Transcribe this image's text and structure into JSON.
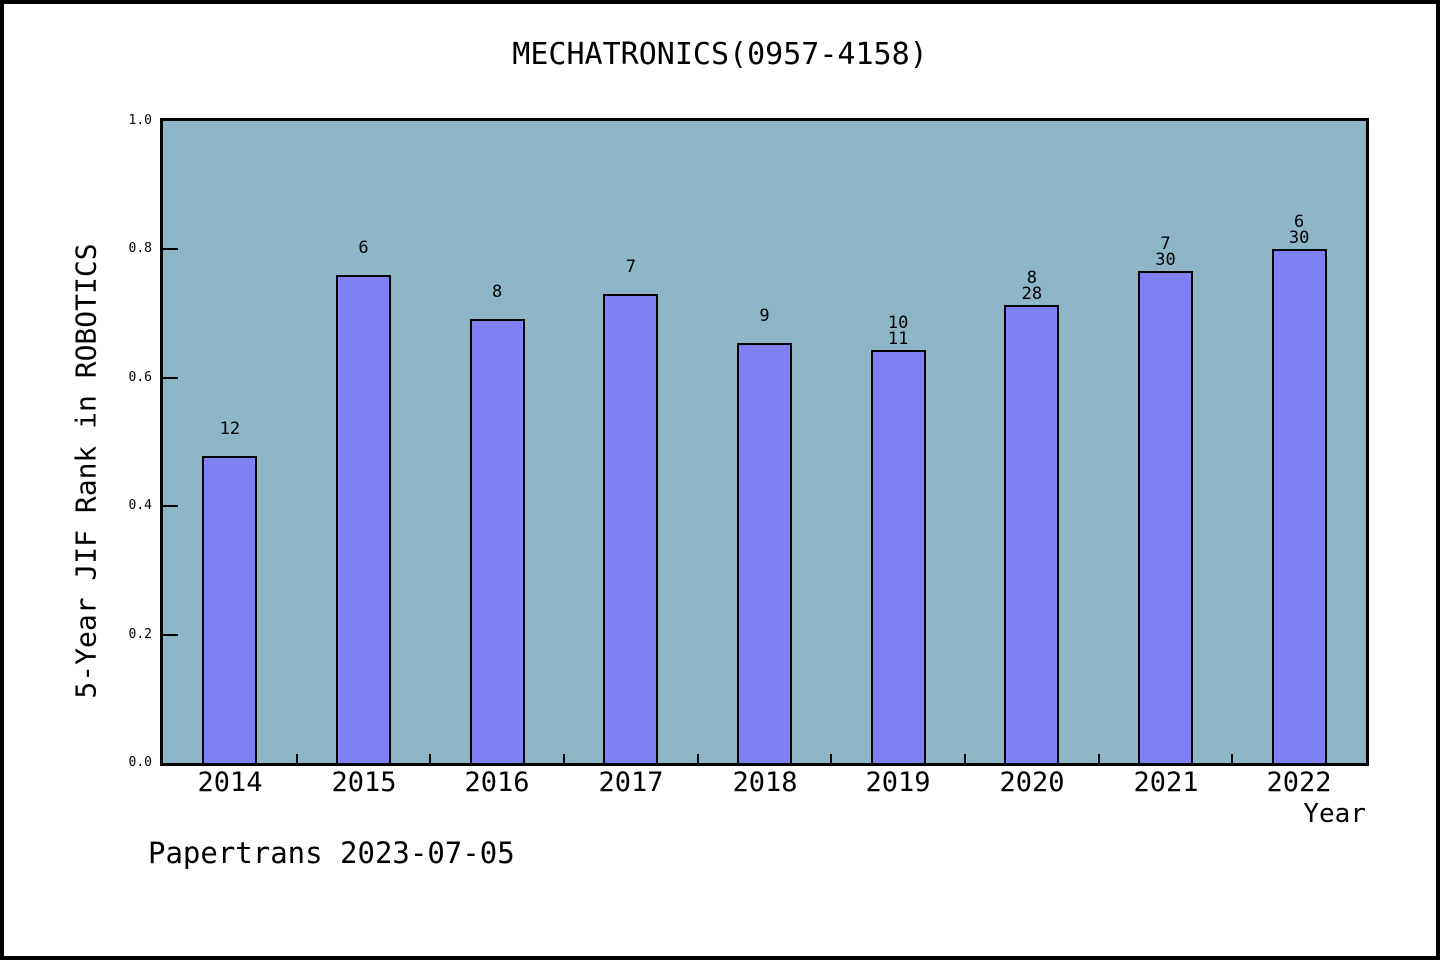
{
  "page": {
    "footer": "Papertrans 2023-07-05"
  },
  "chart_data": {
    "type": "bar",
    "title": "MECHATRONICS(0957-4158)",
    "xlabel": "Year",
    "ylabel": "5-Year JIF Rank in ROBOTICS",
    "categories": [
      "2014",
      "2015",
      "2016",
      "2017",
      "2018",
      "2019",
      "2020",
      "2021",
      "2022"
    ],
    "values": [
      0.478,
      0.76,
      0.692,
      0.731,
      0.654,
      0.643,
      0.714,
      0.767,
      0.8
    ],
    "bar_labels": [
      [
        "12"
      ],
      [
        "6"
      ],
      [
        "8"
      ],
      [
        "7"
      ],
      [
        "9"
      ],
      [
        "10",
        "11"
      ],
      [
        "8",
        "28"
      ],
      [
        "7",
        "30"
      ],
      [
        "6",
        "30"
      ]
    ],
    "ylim": [
      0.0,
      1.0
    ],
    "yticks": [
      0.0,
      0.2,
      0.4,
      0.6,
      0.8,
      1.0
    ],
    "ytick_labels": [
      "0.0",
      "0.2",
      "0.4",
      "0.6",
      "0.8",
      "1.0"
    ],
    "grid": false,
    "legend": "none",
    "colors": {
      "bar_fill": "#8080f5",
      "bar_edge": "#000000",
      "plot_bg": "#8db6c6",
      "frame": "#000000",
      "text": "#000000",
      "page_bg": "#ffffff"
    }
  }
}
